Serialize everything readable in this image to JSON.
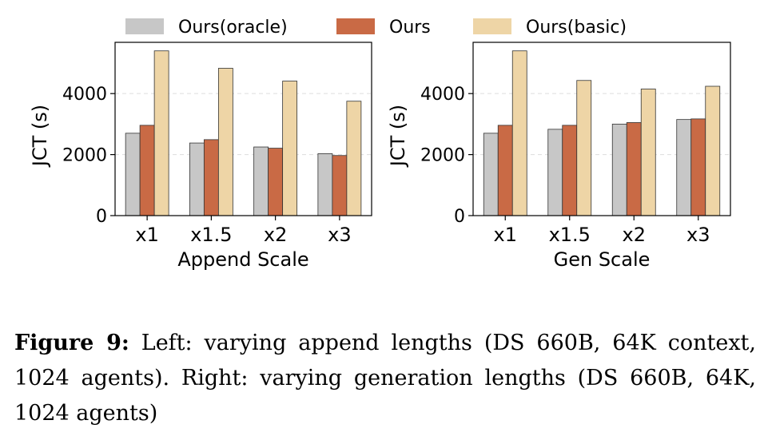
{
  "legend": [
    {
      "label": "Ours(oracle)",
      "color": "#c7c7c7"
    },
    {
      "label": "Ours",
      "color": "#c96a45"
    },
    {
      "label": "Ours(basic)",
      "color": "#eed5a6"
    }
  ],
  "chart_data": [
    {
      "type": "bar",
      "categories": [
        "x1",
        "x1.5",
        "x2",
        "x3"
      ],
      "series": [
        {
          "name": "Ours(oracle)",
          "values": [
            2700,
            2380,
            2250,
            2030
          ]
        },
        {
          "name": "Ours",
          "values": [
            2960,
            2490,
            2210,
            1970
          ]
        },
        {
          "name": "Ours(basic)",
          "values": [
            5400,
            4830,
            4410,
            3750
          ]
        }
      ],
      "xlabel": "Append Scale",
      "ylabel": "JCT (s)",
      "yticks": [
        0,
        2000,
        4000
      ],
      "ylim": [
        0,
        5680
      ],
      "grid": "horizontal dashed"
    },
    {
      "type": "bar",
      "categories": [
        "x1",
        "x1.5",
        "x2",
        "x3"
      ],
      "series": [
        {
          "name": "Ours(oracle)",
          "values": [
            2700,
            2830,
            3000,
            3150
          ]
        },
        {
          "name": "Ours",
          "values": [
            2960,
            2960,
            3050,
            3170
          ]
        },
        {
          "name": "Ours(basic)",
          "values": [
            5400,
            4430,
            4150,
            4240
          ]
        }
      ],
      "xlabel": "Gen Scale",
      "ylabel": "JCT (s)",
      "yticks": [
        0,
        2000,
        4000
      ],
      "ylim": [
        0,
        5680
      ],
      "grid": "horizontal dashed"
    }
  ],
  "caption": {
    "label": "Figure 9:",
    "text": " Left: varying append lengths (DS 660B, 64K context, 1024 agents). Right: varying generation lengths (DS 660B, 64K, 1024 agents)"
  }
}
